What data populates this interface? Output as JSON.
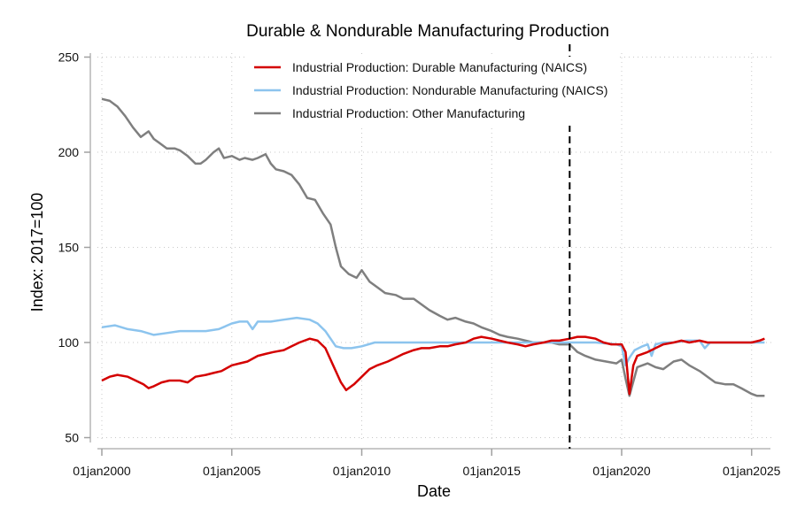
{
  "chart_data": {
    "type": "line",
    "title": "Durable & Nondurable Manufacturing Production",
    "xlabel": "Date",
    "ylabel": "Index: 2017=100",
    "xlim": [
      2000.0,
      2025.5
    ],
    "ylim": [
      50,
      250
    ],
    "yticks": [
      50,
      100,
      150,
      200,
      250
    ],
    "xticks": [
      {
        "value": 2000,
        "label": "01jan2000"
      },
      {
        "value": 2005,
        "label": "01jan2005"
      },
      {
        "value": 2010,
        "label": "01jan2010"
      },
      {
        "value": 2015,
        "label": "01jan2015"
      },
      {
        "value": 2020,
        "label": "01jan2020"
      },
      {
        "value": 2025,
        "label": "01jan2025"
      }
    ],
    "grid": true,
    "legend_position": "top-center",
    "reference_line": {
      "x": 2018.0,
      "style": "dashed",
      "color": "#000000"
    },
    "series": [
      {
        "name": "Industrial Production: Durable Manufacturing (NAICS)",
        "color": "#d40000",
        "x": [
          2000.0,
          2000.3,
          2000.6,
          2001.0,
          2001.3,
          2001.6,
          2001.8,
          2002.0,
          2002.3,
          2002.6,
          2003.0,
          2003.3,
          2003.6,
          2004.0,
          2004.3,
          2004.6,
          2005.0,
          2005.3,
          2005.6,
          2006.0,
          2006.3,
          2006.6,
          2007.0,
          2007.3,
          2007.6,
          2008.0,
          2008.3,
          2008.6,
          2008.9,
          2009.2,
          2009.4,
          2009.7,
          2010.0,
          2010.3,
          2010.6,
          2011.0,
          2011.3,
          2011.6,
          2012.0,
          2012.3,
          2012.6,
          2013.0,
          2013.3,
          2013.6,
          2014.0,
          2014.3,
          2014.6,
          2015.0,
          2015.3,
          2015.6,
          2016.0,
          2016.3,
          2016.6,
          2017.0,
          2017.3,
          2017.6,
          2018.0,
          2018.3,
          2018.6,
          2019.0,
          2019.3,
          2019.6,
          2020.0,
          2020.15,
          2020.3,
          2020.45,
          2020.6,
          2021.0,
          2021.3,
          2021.6,
          2022.0,
          2022.3,
          2022.6,
          2023.0,
          2023.3,
          2023.6,
          2024.0,
          2024.3,
          2024.6,
          2025.0,
          2025.3,
          2025.5
        ],
        "values": [
          80,
          82,
          83,
          82,
          80,
          78,
          76,
          77,
          79,
          80,
          80,
          79,
          82,
          83,
          84,
          85,
          88,
          89,
          90,
          93,
          94,
          95,
          96,
          98,
          100,
          102,
          101,
          97,
          88,
          79,
          75,
          78,
          82,
          86,
          88,
          90,
          92,
          94,
          96,
          97,
          97,
          98,
          98,
          99,
          100,
          102,
          103,
          102,
          101,
          100,
          99,
          98,
          99,
          100,
          101,
          101,
          102,
          103,
          103,
          102,
          100,
          99,
          99,
          95,
          73,
          88,
          93,
          95,
          97,
          99,
          100,
          101,
          100,
          101,
          100,
          100,
          100,
          100,
          100,
          100,
          101,
          102
        ]
      },
      {
        "name": "Industrial Production: Nondurable Manufacturing (NAICS)",
        "color": "#8cc4ee",
        "x": [
          2000.0,
          2000.5,
          2001.0,
          2001.5,
          2002.0,
          2002.5,
          2003.0,
          2003.5,
          2004.0,
          2004.5,
          2005.0,
          2005.3,
          2005.6,
          2005.8,
          2006.0,
          2006.5,
          2007.0,
          2007.5,
          2008.0,
          2008.3,
          2008.6,
          2008.8,
          2009.0,
          2009.3,
          2009.6,
          2010.0,
          2010.5,
          2011.0,
          2012.0,
          2013.0,
          2014.0,
          2015.0,
          2016.0,
          2017.0,
          2018.0,
          2019.0,
          2019.8,
          2020.0,
          2020.15,
          2020.3,
          2020.5,
          2020.8,
          2021.0,
          2021.15,
          2021.3,
          2021.6,
          2022.0,
          2022.5,
          2023.0,
          2023.2,
          2023.4,
          2024.0,
          2024.5,
          2025.0,
          2025.5
        ],
        "values": [
          108,
          109,
          107,
          106,
          104,
          105,
          106,
          106,
          106,
          107,
          110,
          111,
          111,
          107,
          111,
          111,
          112,
          113,
          112,
          110,
          106,
          102,
          98,
          97,
          97,
          98,
          100,
          100,
          100,
          100,
          100,
          100,
          100,
          100,
          100,
          100,
          99,
          98,
          88,
          92,
          96,
          98,
          99,
          93,
          99,
          100,
          100,
          101,
          101,
          97,
          100,
          100,
          100,
          100,
          100
        ]
      },
      {
        "name": "Industrial Production: Other Manufacturing",
        "color": "#7f7f7f",
        "x": [
          2000.0,
          2000.3,
          2000.6,
          2000.9,
          2001.2,
          2001.5,
          2001.8,
          2002.0,
          2002.2,
          2002.5,
          2002.8,
          2003.0,
          2003.3,
          2003.6,
          2003.8,
          2004.0,
          2004.3,
          2004.5,
          2004.7,
          2005.0,
          2005.3,
          2005.5,
          2005.8,
          2006.0,
          2006.3,
          2006.5,
          2006.7,
          2007.0,
          2007.3,
          2007.6,
          2007.9,
          2008.2,
          2008.5,
          2008.8,
          2009.0,
          2009.2,
          2009.5,
          2009.8,
          2010.0,
          2010.3,
          2010.6,
          2010.9,
          2011.3,
          2011.6,
          2012.0,
          2012.3,
          2012.6,
          2013.0,
          2013.3,
          2013.6,
          2014.0,
          2014.3,
          2014.6,
          2015.0,
          2015.3,
          2015.6,
          2016.0,
          2016.3,
          2016.6,
          2017.0,
          2017.3,
          2017.6,
          2018.0,
          2018.3,
          2018.6,
          2019.0,
          2019.4,
          2019.8,
          2020.0,
          2020.15,
          2020.3,
          2020.6,
          2021.0,
          2021.3,
          2021.6,
          2022.0,
          2022.3,
          2022.6,
          2023.0,
          2023.3,
          2023.6,
          2024.0,
          2024.3,
          2024.6,
          2025.0,
          2025.2,
          2025.5
        ],
        "values": [
          228,
          227,
          224,
          219,
          213,
          208,
          211,
          207,
          205,
          202,
          202,
          201,
          198,
          194,
          194,
          196,
          200,
          202,
          197,
          198,
          196,
          197,
          196,
          197,
          199,
          194,
          191,
          190,
          188,
          183,
          176,
          175,
          168,
          162,
          150,
          140,
          136,
          134,
          138,
          132,
          129,
          126,
          125,
          123,
          123,
          120,
          117,
          114,
          112,
          113,
          111,
          110,
          108,
          106,
          104,
          103,
          102,
          101,
          100,
          100,
          100,
          99,
          99,
          95,
          93,
          91,
          90,
          89,
          91,
          81,
          72,
          87,
          89,
          87,
          86,
          90,
          91,
          88,
          85,
          82,
          79,
          78,
          78,
          76,
          73,
          72,
          72
        ]
      }
    ]
  }
}
